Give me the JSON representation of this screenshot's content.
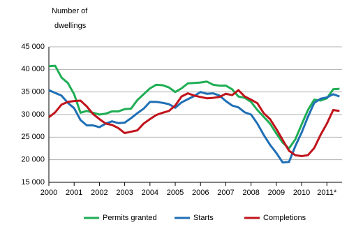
{
  "chart_data": {
    "type": "line",
    "ylabel": [
      "Number of",
      "dwellings"
    ],
    "x": [
      2000,
      2000.25,
      2000.5,
      2000.75,
      2001,
      2001.25,
      2001.5,
      2001.75,
      2002,
      2002.25,
      2002.5,
      2002.75,
      2003,
      2003.25,
      2003.5,
      2003.75,
      2004,
      2004.25,
      2004.5,
      2004.75,
      2005,
      2005.25,
      2005.5,
      2005.75,
      2006,
      2006.25,
      2006.5,
      2006.75,
      2007,
      2007.25,
      2007.5,
      2007.75,
      2008,
      2008.25,
      2008.5,
      2008.75,
      2009,
      2009.25,
      2009.5,
      2009.75,
      2010,
      2010.25,
      2010.5,
      2010.75,
      2011,
      2011.25,
      2011.5
    ],
    "series": [
      {
        "name": "Permits granted",
        "color": "#1fae54",
        "values": [
          40700,
          40800,
          38200,
          37000,
          34500,
          30400,
          30800,
          30400,
          30000,
          30200,
          30700,
          30700,
          31200,
          31300,
          33200,
          34500,
          35800,
          36600,
          36500,
          36000,
          35000,
          35800,
          36900,
          37000,
          37100,
          37300,
          36600,
          36400,
          36400,
          35600,
          34000,
          33700,
          32800,
          31000,
          29500,
          28000,
          25800,
          23800,
          22500,
          24500,
          27800,
          31000,
          33300,
          33100,
          33600,
          35600,
          35700
        ]
      },
      {
        "name": "Starts",
        "color": "#1f6fb5",
        "values": [
          35400,
          34800,
          34200,
          32600,
          31400,
          28800,
          27600,
          27600,
          27200,
          28000,
          28500,
          28100,
          28200,
          29200,
          30300,
          31300,
          32800,
          32800,
          32600,
          32300,
          31500,
          32700,
          33400,
          34100,
          35000,
          34600,
          34700,
          34200,
          33000,
          32000,
          31600,
          30500,
          30000,
          28000,
          25500,
          23300,
          21500,
          19400,
          19500,
          23000,
          26000,
          29500,
          32600,
          33500,
          33800,
          34500,
          34000
        ]
      },
      {
        "name": "Completions",
        "color": "#c0141c",
        "values": [
          29400,
          30500,
          32200,
          32800,
          33000,
          33100,
          31800,
          30100,
          29000,
          28000,
          27700,
          27000,
          25900,
          26200,
          26500,
          28000,
          29000,
          29900,
          30400,
          30800,
          32000,
          34000,
          34700,
          34200,
          33900,
          33600,
          33700,
          33900,
          34600,
          34300,
          35400,
          34000,
          33300,
          32500,
          30300,
          29000,
          26800,
          24400,
          22000,
          21000,
          20800,
          21000,
          22600,
          25500,
          28000,
          31000,
          30800
        ]
      }
    ],
    "xlim": [
      2000,
      2011.6
    ],
    "xticks": [
      2000,
      2001,
      2002,
      2003,
      2004,
      2005,
      2006,
      2007,
      2008,
      2009,
      2010,
      {
        "value": 2011,
        "label": "2011*"
      }
    ],
    "ylim": [
      15000,
      45000
    ],
    "yticks": [
      {
        "value": 15000,
        "label": "15 000"
      },
      {
        "value": 20000,
        "label": "20 000"
      },
      {
        "value": 25000,
        "label": "25 000"
      },
      {
        "value": 30000,
        "label": "30 000"
      },
      {
        "value": 35000,
        "label": "35 000"
      },
      {
        "value": 40000,
        "label": "40 000"
      },
      {
        "value": 45000,
        "label": "45 000"
      }
    ],
    "grid": true
  }
}
